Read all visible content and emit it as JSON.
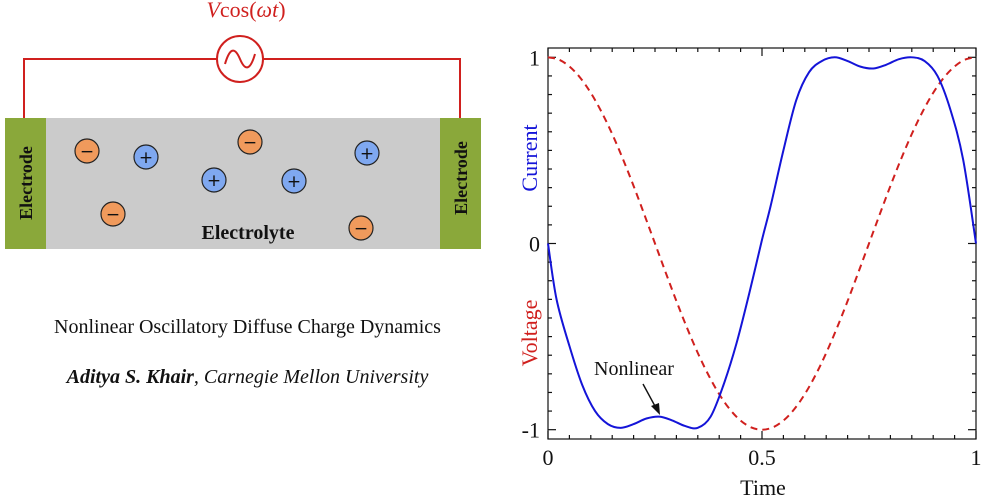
{
  "circuit": {
    "source_label_prefix": "V",
    "source_label_fn": "cos(",
    "source_label_omega": "ω",
    "source_label_t": "t",
    "source_label_suffix": ")",
    "wire_color": "#d0201e",
    "electrode_left": "Electrode",
    "electrode_right": "Electrode",
    "electrolyte": "Electrolyte",
    "electrode_color": "#8aa83a",
    "electrolyte_color": "#cbcbcb",
    "negative_ion_color": "#f09a5c",
    "positive_ion_color": "#7fa8f0",
    "negative_symbol": "−",
    "positive_symbol": "+"
  },
  "paper": {
    "title": "Nonlinear Oscillatory Diffuse Charge Dynamics",
    "author": "Aditya S. Khair",
    "affiliation": ", Carnegie Mellon University"
  },
  "chart_data": {
    "type": "line",
    "title": "",
    "xlabel": "Time",
    "ylabel_current": "Current",
    "ylabel_voltage": "Voltage",
    "xlim": [
      0,
      1
    ],
    "ylim": [
      -1.05,
      1.05
    ],
    "x_ticks": [
      0,
      0.5,
      1
    ],
    "x_tick_labels": [
      "0",
      "0.5",
      "1"
    ],
    "y_ticks": [
      1,
      0,
      -1
    ],
    "y_tick_labels": [
      "1",
      "0",
      "-1"
    ],
    "annotation": {
      "text": "Nonlinear",
      "x": 0.26,
      "y": -0.94
    },
    "series": [
      {
        "name": "Current",
        "color": "#1414d8",
        "style": "solid",
        "x": [
          0,
          0.02,
          0.05,
          0.08,
          0.11,
          0.14,
          0.17,
          0.2,
          0.23,
          0.26,
          0.29,
          0.32,
          0.35,
          0.38,
          0.41,
          0.44,
          0.47,
          0.5,
          0.52,
          0.55,
          0.58,
          0.61,
          0.64,
          0.67,
          0.7,
          0.73,
          0.76,
          0.79,
          0.82,
          0.85,
          0.88,
          0.91,
          0.94,
          0.97,
          1.0
        ],
        "y": [
          0,
          -0.3,
          -0.55,
          -0.76,
          -0.9,
          -0.97,
          -0.99,
          -0.97,
          -0.94,
          -0.93,
          -0.95,
          -0.98,
          -0.99,
          -0.93,
          -0.76,
          -0.54,
          -0.27,
          0.02,
          0.2,
          0.5,
          0.77,
          0.92,
          0.98,
          1.0,
          0.98,
          0.95,
          0.94,
          0.96,
          0.99,
          1.0,
          0.98,
          0.9,
          0.72,
          0.45,
          0.0
        ]
      },
      {
        "name": "Voltage",
        "color": "#d0201e",
        "style": "dashed",
        "x": [
          0,
          0.025,
          0.05,
          0.075,
          0.1,
          0.125,
          0.15,
          0.175,
          0.2,
          0.225,
          0.25,
          0.275,
          0.3,
          0.325,
          0.35,
          0.375,
          0.4,
          0.425,
          0.45,
          0.475,
          0.5,
          0.525,
          0.55,
          0.575,
          0.6,
          0.625,
          0.65,
          0.675,
          0.7,
          0.725,
          0.75,
          0.775,
          0.8,
          0.825,
          0.85,
          0.875,
          0.9,
          0.925,
          0.95,
          0.975,
          1.0
        ],
        "y": [
          1.0,
          0.988,
          0.951,
          0.891,
          0.809,
          0.707,
          0.588,
          0.454,
          0.309,
          0.156,
          0.0,
          -0.156,
          -0.309,
          -0.454,
          -0.588,
          -0.707,
          -0.809,
          -0.891,
          -0.951,
          -0.988,
          -1.0,
          -0.988,
          -0.951,
          -0.891,
          -0.809,
          -0.707,
          -0.588,
          -0.454,
          -0.309,
          -0.156,
          0.0,
          0.156,
          0.309,
          0.454,
          0.588,
          0.707,
          0.809,
          0.891,
          0.951,
          0.988,
          1.0
        ]
      }
    ]
  }
}
